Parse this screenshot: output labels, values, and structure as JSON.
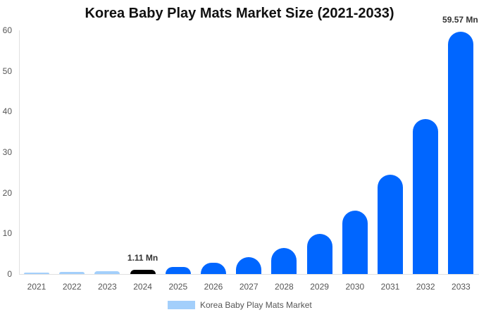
{
  "chart_data": {
    "type": "bar",
    "title": "Korea Baby Play Mats Market Size (2021-2033)",
    "xlabel": "",
    "ylabel": "",
    "ylim": [
      0,
      60
    ],
    "yticks": [
      0,
      10,
      20,
      30,
      40,
      50,
      60
    ],
    "grid": false,
    "legend_position": "bottom",
    "categories": [
      "2021",
      "2022",
      "2023",
      "2024",
      "2025",
      "2026",
      "2027",
      "2028",
      "2029",
      "2030",
      "2031",
      "2032",
      "2033"
    ],
    "series": [
      {
        "name": "Korea Baby Play Mats Market",
        "values": [
          0.3,
          0.45,
          0.7,
          1.11,
          1.73,
          2.7,
          4.2,
          6.4,
          9.9,
          15.6,
          24.4,
          38.1,
          59.57
        ]
      }
    ],
    "annotations": [
      {
        "category": "2024",
        "text": "1.11 Mn"
      },
      {
        "category": "2033",
        "text": "59.57 Mn"
      }
    ],
    "colors": {
      "historical": "#a3cffb",
      "base_year": "#000000",
      "forecast": "#0066ff"
    }
  }
}
